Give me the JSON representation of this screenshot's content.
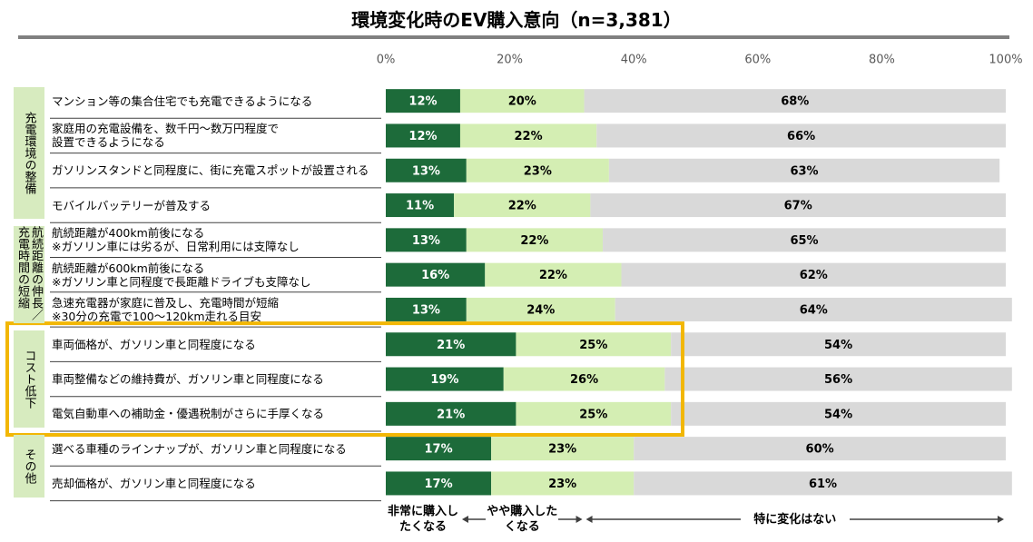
{
  "chart_data": {
    "type": "stacked-bar-horizontal",
    "title": "環境変化時のEV購入意向（n=3,381）",
    "xlim": [
      0,
      100
    ],
    "xticks": [
      {
        "value": 0,
        "label": "0%"
      },
      {
        "value": 20,
        "label": "20%"
      },
      {
        "value": 40,
        "label": "40%"
      },
      {
        "value": 60,
        "label": "60%"
      },
      {
        "value": 80,
        "label": "80%"
      },
      {
        "value": 100,
        "label": "100%"
      }
    ],
    "groups": [
      {
        "name": "充電環境の整備",
        "categories": [
          "マンション等の集合住宅でも充電できるようになる",
          "家庭用の充電設備を、数千円～数万円程度で\n設置できるようになる",
          "ガソリンスタンドと同程度に、街に充電スポットが設置される",
          "モバイルバッテリーが普及する"
        ]
      },
      {
        "name": "航続距離の伸長／充電時間の短縮",
        "categories": [
          "航続距離が400km前後になる\n※ガソリン車には劣るが、日常利用には支障なし",
          "航続距離が600km前後になる\n※ガソリン車と同程度で長距離ドライブも支障なし",
          "急速充電器が家庭に普及し、充電時間が短縮\n※30分の充電で100～120km走れる目安"
        ]
      },
      {
        "name": "コスト低下",
        "highlight": "#f2b705",
        "categories": [
          "車両価格が、ガソリン車と同程度になる",
          "車両整備などの維持費が、ガソリン車と同程度になる",
          "電気自動車への補助金・優遇税制がさらに手厚くなる"
        ]
      },
      {
        "name": "その他",
        "categories": [
          "選べる車種のラインナップが、ガソリン車と同程度になる",
          "売却価格が、ガソリン車と同程度になる"
        ]
      }
    ],
    "series": [
      {
        "name": "非常に購入したくなる",
        "color": "#1d6b3a",
        "label_color": "#ffffff",
        "values": [
          12,
          12,
          13,
          11,
          13,
          16,
          13,
          21,
          19,
          21,
          17,
          17
        ],
        "value_labels": [
          "12%",
          "12%",
          "13%",
          "11%",
          "13%",
          "16%",
          "13%",
          "21%",
          "19%",
          "21%",
          "17%",
          "17%"
        ]
      },
      {
        "name": "やや購入したくなる",
        "color": "#d4eeb3",
        "label_color": "#000000",
        "values": [
          20,
          22,
          23,
          22,
          22,
          22,
          24,
          25,
          26,
          25,
          23,
          23
        ],
        "value_labels": [
          "20%",
          "22%",
          "23%",
          "22%",
          "22%",
          "22%",
          "24%",
          "25%",
          "26%",
          "25%",
          "23%",
          "23%"
        ]
      },
      {
        "name": "特に変化はない",
        "color": "#d9d9d9",
        "label_color": "#000000",
        "values": [
          68,
          66,
          63,
          67,
          65,
          62,
          64,
          54,
          56,
          54,
          60,
          61
        ],
        "value_labels": [
          "68%",
          "66%",
          "63%",
          "67%",
          "65%",
          "62%",
          "64%",
          "54%",
          "56%",
          "54%",
          "60%",
          "61%"
        ]
      }
    ]
  }
}
